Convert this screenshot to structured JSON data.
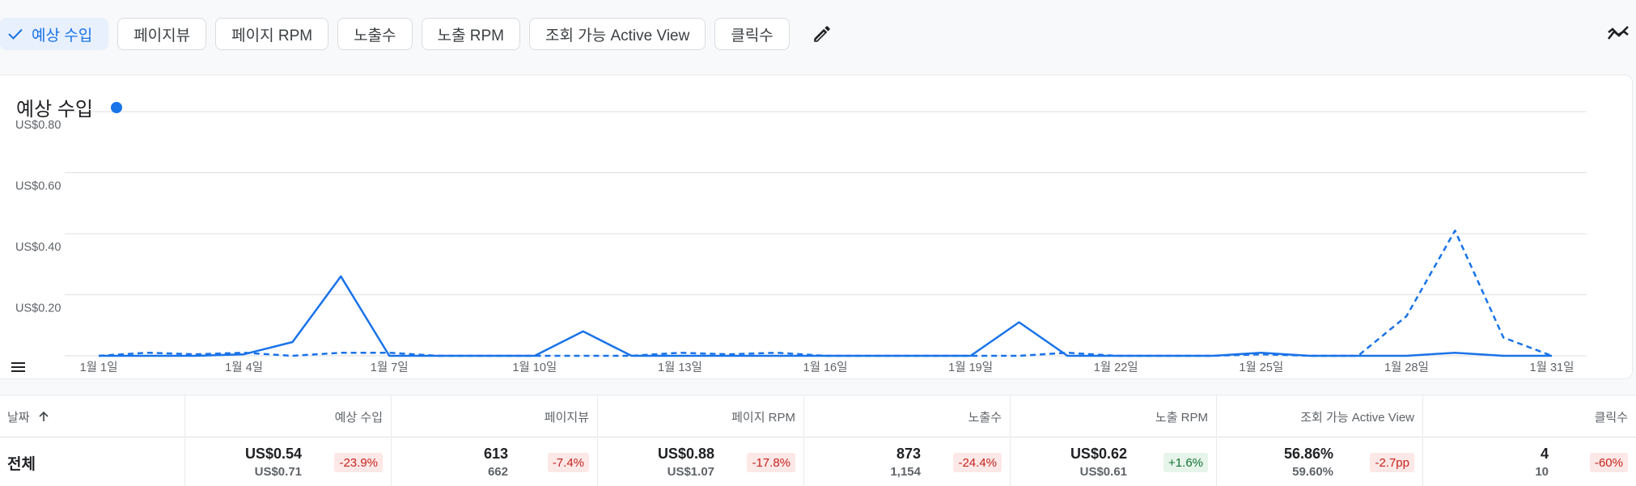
{
  "metric_chips": [
    {
      "label": "예상 수입",
      "selected": true
    },
    {
      "label": "페이지뷰",
      "selected": false
    },
    {
      "label": "페이지 RPM",
      "selected": false
    },
    {
      "label": "노출수",
      "selected": false
    },
    {
      "label": "노출 RPM",
      "selected": false
    },
    {
      "label": "조회 가능 Active View",
      "selected": false
    },
    {
      "label": "클릭수",
      "selected": false
    }
  ],
  "icons": {
    "edit": "pencil-icon",
    "trend": "trend-compare-icon",
    "check": "check-icon",
    "legend": "legend-list-icon",
    "sort": "arrow-up-icon"
  },
  "colors": {
    "accent": "#1a73e8",
    "negative_bg": "#fce8e6",
    "negative_text": "#c5221f",
    "positive_bg": "#e6f4ea",
    "positive_text": "#137333"
  },
  "chart_data": {
    "type": "line",
    "title": "예상 수입",
    "x": [
      "1월 1일",
      "1월 2일",
      "1월 3일",
      "1월 4일",
      "1월 5일",
      "1월 6일",
      "1월 7일",
      "1월 8일",
      "1월 9일",
      "1월 10일",
      "1월 11일",
      "1월 12일",
      "1월 13일",
      "1월 14일",
      "1월 15일",
      "1월 16일",
      "1월 17일",
      "1월 18일",
      "1월 19일",
      "1월 20일",
      "1월 21일",
      "1월 22일",
      "1월 23일",
      "1월 24일",
      "1월 25일",
      "1월 26일",
      "1월 27일",
      "1월 28일",
      "1월 29일",
      "1월 30일",
      "1월 31일"
    ],
    "xticks": [
      "1월 1일",
      "1월 4일",
      "1월 7일",
      "1월 10일",
      "1월 13일",
      "1월 16일",
      "1월 19일",
      "1월 22일",
      "1월 25일",
      "1월 28일",
      "1월 31일"
    ],
    "yticks": [
      "US$0.80",
      "US$0.60",
      "US$0.40",
      "US$0.20"
    ],
    "ytick_values": [
      0.8,
      0.6,
      0.4,
      0.2
    ],
    "ylim": [
      0,
      0.8
    ],
    "grid": true,
    "series": [
      {
        "style": "solid",
        "color": "#1a73e8",
        "values": [
          0,
          0,
          0,
          0.005,
          0.045,
          0.26,
          0,
          0,
          0,
          0,
          0.08,
          0,
          0,
          0,
          0,
          0,
          0,
          0,
          0,
          0.11,
          0,
          0,
          0,
          0,
          0.01,
          0,
          0,
          0,
          0.01,
          0,
          0
        ]
      },
      {
        "style": "dashed",
        "color": "#1a73e8",
        "values": [
          0,
          0.01,
          0.005,
          0.01,
          0,
          0.01,
          0.01,
          0,
          0,
          0,
          0,
          0,
          0.01,
          0.005,
          0.01,
          0,
          0,
          0,
          0,
          0,
          0.01,
          0,
          0,
          0,
          0.005,
          0,
          0,
          0.13,
          0.41,
          0.06,
          0
        ]
      }
    ]
  },
  "table": {
    "headers": [
      {
        "label": "날짜"
      },
      {
        "label": "예상 수입"
      },
      {
        "label": "페이지뷰"
      },
      {
        "label": "페이지 RPM"
      },
      {
        "label": "노출수"
      },
      {
        "label": "노출 RPM"
      },
      {
        "label": "조회 가능 Active View"
      },
      {
        "label": "클릭수"
      }
    ],
    "total_row": {
      "label": "전체",
      "cells": [
        {
          "value": "US$0.54",
          "previous": "US$0.71",
          "change": "-23.9%",
          "trend": "neg"
        },
        {
          "value": "613",
          "previous": "662",
          "change": "-7.4%",
          "trend": "neg"
        },
        {
          "value": "US$0.88",
          "previous": "US$1.07",
          "change": "-17.8%",
          "trend": "neg"
        },
        {
          "value": "873",
          "previous": "1,154",
          "change": "-24.4%",
          "trend": "neg"
        },
        {
          "value": "US$0.62",
          "previous": "US$0.61",
          "change": "+1.6%",
          "trend": "pos"
        },
        {
          "value": "56.86%",
          "previous": "59.60%",
          "change": "-2.7pp",
          "trend": "neg"
        },
        {
          "value": "4",
          "previous": "10",
          "change": "-60%",
          "trend": "neg"
        }
      ]
    }
  }
}
